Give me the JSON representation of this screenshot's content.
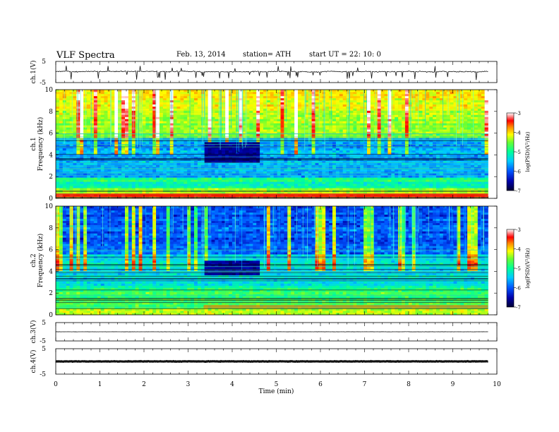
{
  "header": {
    "title": "VLF  Spectra",
    "date": "Feb. 13, 2014",
    "station": "station= ATH",
    "start": "start  UT  =   22: 10: 0"
  },
  "chart_data": [
    {
      "type": "line",
      "panel": "ch1-waveform",
      "ylabel": "ch.1(V)",
      "ylim": [
        -5,
        5
      ],
      "yticks": [
        "5",
        "-5"
      ],
      "xlim": [
        0,
        10
      ],
      "data_x_end": 9.8,
      "baseline": 0.2,
      "notes": "noisy waveform with frequent negative spikes"
    },
    {
      "type": "heatmap",
      "panel": "ch1-spectrogram",
      "ylabel": "ch.1\nFrequency (kHz)",
      "ylabel_line1": "ch.1",
      "ylabel_line2": "Frequency  (kHz)",
      "ylim": [
        0,
        10
      ],
      "yticks": [
        "0",
        "2",
        "4",
        "6",
        "8",
        "10"
      ],
      "xlim": [
        0,
        10
      ],
      "data_x_end": 9.8,
      "colorbar": {
        "label": "log(PSD)(V²/Hz)",
        "range": [
          -7,
          -3
        ],
        "ticks": [
          "-3",
          "-4",
          "-5",
          "-6",
          "-7"
        ]
      },
      "quiet_interval_min": [
        3.35,
        4.65
      ],
      "quiet_band_khz": [
        3.2,
        5.2
      ]
    },
    {
      "type": "heatmap",
      "panel": "ch2-spectrogram",
      "ylabel_line1": "ch.2",
      "ylabel_line2": "Frequency  (kHz)",
      "ylim": [
        0,
        10
      ],
      "yticks": [
        "0",
        "2",
        "4",
        "6",
        "8",
        "10"
      ],
      "xlim": [
        0,
        10
      ],
      "data_x_end": 9.8,
      "colorbar": {
        "label": "log(PSD)(V²/Hz)",
        "range": [
          -7,
          -3
        ],
        "ticks": [
          "-3",
          "-4",
          "-5",
          "-6",
          "-7"
        ]
      },
      "quiet_interval_min": [
        3.35,
        4.65
      ],
      "quiet_band_khz": [
        3.6,
        5.0
      ]
    },
    {
      "type": "line",
      "panel": "ch3-waveform",
      "ylabel": "ch.3(V)",
      "ylim": [
        -5,
        5
      ],
      "yticks": [
        "5",
        "-5"
      ],
      "xlim": [
        0,
        10
      ],
      "data_x_end": 9.8,
      "baseline": 0
    },
    {
      "type": "line",
      "panel": "ch4-waveform",
      "ylabel": "ch.4(V)",
      "ylim": [
        -5,
        5
      ],
      "yticks": [
        "5",
        "-5"
      ],
      "xlim": [
        0,
        10
      ],
      "data_x_end": 9.8,
      "baseline": 0,
      "notes": "thick flat band"
    }
  ],
  "xaxis": {
    "label": "Time  (min)",
    "ticks": [
      "0",
      "1",
      "2",
      "3",
      "4",
      "5",
      "6",
      "7",
      "8",
      "9",
      "10"
    ]
  },
  "colors": {
    "trace": "#111111",
    "colormap": [
      "#000033",
      "#0000aa",
      "#0055ff",
      "#00ccff",
      "#00ff99",
      "#66ff33",
      "#ffff00",
      "#ff8800",
      "#ff0000",
      "#ffffff"
    ]
  }
}
